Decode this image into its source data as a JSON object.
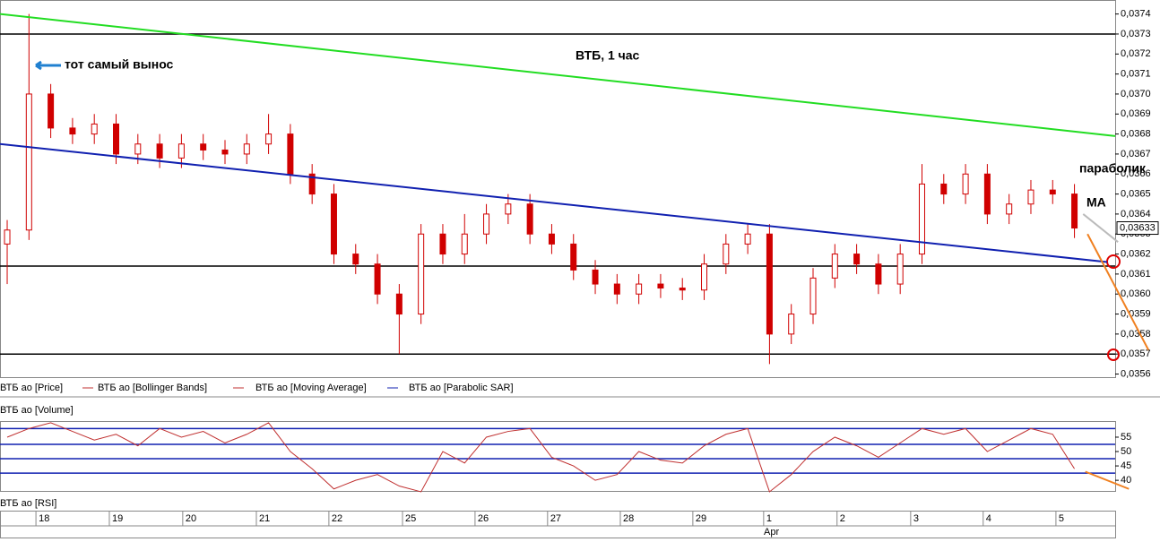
{
  "chart_data": [
    {
      "type": "candlestick",
      "title": "ВТБ,  1 час",
      "annotations": [
        "тот самый вынос",
        "параболик",
        "MA"
      ],
      "legend": [
        "ВТБ ао [Price]",
        "ВТБ ао [Bollinger Bands]",
        "ВТБ ао [Moving Average]",
        "ВТБ ао [Parabolic SAR]"
      ],
      "color": "#d00000",
      "xlim": [
        -0.33,
        50.87
      ],
      "ylim": [
        0.03558,
        0.03747
      ],
      "yticks": [
        {
          "value": 0.0356,
          "label": "0,0356"
        },
        {
          "value": 0.0357,
          "label": "0,0357"
        },
        {
          "value": 0.0358,
          "label": "0,0358"
        },
        {
          "value": 0.0359,
          "label": "0,0359"
        },
        {
          "value": 0.036,
          "label": "0,0360"
        },
        {
          "value": 0.0361,
          "label": "0,0361"
        },
        {
          "value": 0.0362,
          "label": "0,0362"
        },
        {
          "value": 0.0363,
          "label": "0,0363"
        },
        {
          "value": 0.0364,
          "label": "0,0364"
        },
        {
          "value": 0.0365,
          "label": "0,0365"
        },
        {
          "value": 0.0366,
          "label": "0,0366"
        },
        {
          "value": 0.0367,
          "label": "0,0367"
        },
        {
          "value": 0.0368,
          "label": "0,0368"
        },
        {
          "value": 0.0369,
          "label": "0,0369"
        },
        {
          "value": 0.037,
          "label": "0,0370"
        },
        {
          "value": 0.0371,
          "label": "0,0371"
        },
        {
          "value": 0.0372,
          "label": "0,0372"
        },
        {
          "value": 0.0373,
          "label": "0,0373"
        },
        {
          "value": 0.0374,
          "label": "0,0374"
        }
      ],
      "open": [
        0.03625,
        0.03632,
        0.037,
        0.03683,
        0.0368,
        0.03685,
        0.0367,
        0.03675,
        0.03668,
        0.03675,
        0.03672,
        0.0367,
        0.03675,
        0.0368,
        0.0366,
        0.0365,
        0.0362,
        0.03615,
        0.036,
        0.0359,
        0.0363,
        0.0362,
        0.0363,
        0.0364,
        0.03645,
        0.0363,
        0.03625,
        0.03612,
        0.03605,
        0.036,
        0.03605,
        0.03603,
        0.03602,
        0.03615,
        0.03625,
        0.0363,
        0.0358,
        0.0359,
        0.03608,
        0.0362,
        0.03615,
        0.03605,
        0.0362,
        0.03655,
        0.0365,
        0.0366,
        0.0364,
        0.03645,
        0.03652,
        0.0365
      ],
      "high": [
        0.03637,
        0.0374,
        0.03705,
        0.03688,
        0.0369,
        0.0369,
        0.0368,
        0.0368,
        0.0368,
        0.0368,
        0.03677,
        0.0368,
        0.0369,
        0.03685,
        0.03665,
        0.03655,
        0.03625,
        0.0362,
        0.03605,
        0.03635,
        0.03635,
        0.0364,
        0.03645,
        0.0365,
        0.0365,
        0.03635,
        0.0363,
        0.03617,
        0.0361,
        0.0361,
        0.0361,
        0.03608,
        0.0362,
        0.0363,
        0.03635,
        0.03635,
        0.03595,
        0.03613,
        0.03625,
        0.03625,
        0.0362,
        0.03625,
        0.03665,
        0.0366,
        0.03665,
        0.03665,
        0.0365,
        0.03657,
        0.03657,
        0.03655
      ],
      "low": [
        0.03605,
        0.03627,
        0.03678,
        0.03675,
        0.03675,
        0.03665,
        0.03665,
        0.03663,
        0.03663,
        0.03667,
        0.03665,
        0.03665,
        0.0367,
        0.03655,
        0.03645,
        0.03615,
        0.0361,
        0.03595,
        0.0357,
        0.03585,
        0.03615,
        0.03615,
        0.03625,
        0.03635,
        0.03625,
        0.0362,
        0.03607,
        0.036,
        0.03595,
        0.03595,
        0.03598,
        0.03597,
        0.03597,
        0.0361,
        0.0362,
        0.03565,
        0.03575,
        0.03585,
        0.03603,
        0.0361,
        0.036,
        0.036,
        0.03615,
        0.03645,
        0.03645,
        0.03635,
        0.03635,
        0.0364,
        0.03645,
        0.03628
      ],
      "close": [
        0.03632,
        0.037,
        0.03683,
        0.0368,
        0.03685,
        0.0367,
        0.03675,
        0.03668,
        0.03675,
        0.03672,
        0.0367,
        0.03675,
        0.0368,
        0.0366,
        0.0365,
        0.0362,
        0.03615,
        0.036,
        0.0359,
        0.0363,
        0.0362,
        0.0363,
        0.0364,
        0.03645,
        0.0363,
        0.03625,
        0.03612,
        0.03605,
        0.036,
        0.03605,
        0.03603,
        0.03602,
        0.03615,
        0.03625,
        0.0363,
        0.0358,
        0.0359,
        0.03608,
        0.0362,
        0.03615,
        0.03605,
        0.0362,
        0.03655,
        0.0365,
        0.0366,
        0.0364,
        0.03645,
        0.03652,
        0.0365,
        0.03633
      ],
      "last_label": "0,03633",
      "hlines": [
        0.0373,
        0.03614,
        0.0357
      ],
      "lines": [
        {
          "color": "#22dd22",
          "x": [
            -0.33,
            50.87
          ],
          "y": [
            0.0374,
            0.03679
          ]
        },
        {
          "color": "#1020b0",
          "x": [
            -0.33,
            50.5
          ],
          "y": [
            0.03675,
            0.03616
          ]
        },
        {
          "color": "#bbbbbb",
          "x": [
            49.4,
            51.0
          ],
          "y": [
            0.0364,
            0.03626
          ]
        },
        {
          "color": "#f08020",
          "x": [
            49.6,
            52.4
          ],
          "y": [
            0.0363,
            0.03572
          ]
        }
      ]
    },
    {
      "type": "line",
      "legend": [
        "ВТБ ао [Volume]",
        "ВТБ ао [RSI]"
      ],
      "color": "#c03030",
      "xlim": [
        -0.33,
        50.87
      ],
      "ylim": [
        36.3,
        60.6
      ],
      "yticks": [
        40,
        45,
        50,
        55
      ],
      "hlines": [
        58,
        52.5,
        47.5,
        42.5
      ],
      "values": [
        55,
        58,
        60,
        57,
        54,
        56,
        52,
        58,
        55,
        57,
        53,
        56,
        60,
        50,
        44,
        37,
        40,
        42,
        38,
        36,
        50,
        46,
        55,
        57,
        58,
        48,
        45,
        40,
        42,
        50,
        47,
        46,
        52,
        56,
        58,
        36,
        42,
        50,
        55,
        52,
        48,
        53,
        58,
        56,
        58,
        50,
        54,
        58,
        56,
        44
      ],
      "projection": {
        "x": [
          49.5,
          51.5
        ],
        "y": [
          43,
          37
        ]
      },
      "xticks": [
        {
          "value": 1.32,
          "label": "18"
        },
        {
          "value": 4.69,
          "label": "19"
        },
        {
          "value": 8.06,
          "label": "20"
        },
        {
          "value": 11.44,
          "label": "21"
        },
        {
          "value": 14.77,
          "label": "22"
        },
        {
          "value": 18.15,
          "label": "25"
        },
        {
          "value": 21.48,
          "label": "26"
        },
        {
          "value": 24.81,
          "label": "27"
        },
        {
          "value": 28.15,
          "label": "28"
        },
        {
          "value": 31.48,
          "label": "29"
        },
        {
          "value": 34.73,
          "label": "1"
        },
        {
          "value": 38.1,
          "label": "2"
        },
        {
          "value": 41.48,
          "label": "3"
        },
        {
          "value": 44.81,
          "label": "4"
        },
        {
          "value": 48.15,
          "label": "5"
        }
      ],
      "month_label": "Apr"
    }
  ]
}
